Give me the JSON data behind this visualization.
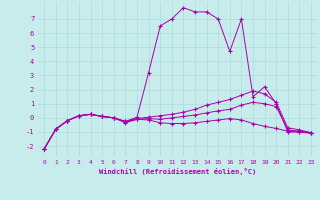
{
  "xlabel": "Windchill (Refroidissement éolien,°C)",
  "background_color": "#c8ecec",
  "line_color": "#aa00aa",
  "grid_color": "#aadddd",
  "xlim": [
    -0.5,
    23.5
  ],
  "ylim": [
    -2.7,
    8.2
  ],
  "yticks": [
    -2,
    -1,
    0,
    1,
    2,
    3,
    4,
    5,
    6,
    7
  ],
  "xticks": [
    0,
    1,
    2,
    3,
    4,
    5,
    6,
    7,
    8,
    9,
    10,
    11,
    12,
    13,
    14,
    15,
    16,
    17,
    18,
    19,
    20,
    21,
    22,
    23
  ],
  "lines": [
    {
      "x": [
        0,
        1,
        2,
        3,
        4,
        5,
        6,
        7,
        8,
        9,
        10,
        11,
        12,
        13,
        14,
        15,
        16,
        17,
        18,
        19,
        20,
        21,
        22,
        23
      ],
      "y": [
        -2.2,
        -0.8,
        -0.2,
        0.15,
        0.25,
        0.1,
        0.0,
        -0.25,
        0.05,
        3.2,
        6.5,
        7.0,
        7.8,
        7.5,
        7.5,
        7.0,
        4.7,
        7.0,
        1.5,
        2.2,
        1.0,
        -1.0,
        -1.0,
        -1.1
      ]
    },
    {
      "x": [
        0,
        1,
        2,
        3,
        4,
        5,
        6,
        7,
        8,
        9,
        10,
        11,
        12,
        13,
        14,
        15,
        16,
        17,
        18,
        19,
        20,
        21,
        22,
        23
      ],
      "y": [
        -2.2,
        -0.8,
        -0.2,
        0.15,
        0.25,
        0.1,
        0.0,
        -0.25,
        -0.05,
        0.05,
        0.15,
        0.25,
        0.4,
        0.6,
        0.9,
        1.1,
        1.3,
        1.6,
        1.9,
        1.7,
        1.1,
        -0.7,
        -0.85,
        -1.05
      ]
    },
    {
      "x": [
        0,
        1,
        2,
        3,
        4,
        5,
        6,
        7,
        8,
        9,
        10,
        11,
        12,
        13,
        14,
        15,
        16,
        17,
        18,
        19,
        20,
        21,
        22,
        23
      ],
      "y": [
        -2.2,
        -0.8,
        -0.2,
        0.15,
        0.25,
        0.1,
        0.0,
        -0.35,
        -0.1,
        -0.05,
        -0.1,
        0.0,
        0.1,
        0.2,
        0.35,
        0.5,
        0.6,
        0.9,
        1.1,
        1.0,
        0.8,
        -0.85,
        -0.95,
        -1.05
      ]
    },
    {
      "x": [
        0,
        1,
        2,
        3,
        4,
        5,
        6,
        7,
        8,
        9,
        10,
        11,
        12,
        13,
        14,
        15,
        16,
        17,
        18,
        19,
        20,
        21,
        22,
        23
      ],
      "y": [
        -2.2,
        -0.8,
        -0.2,
        0.15,
        0.25,
        0.1,
        0.0,
        -0.3,
        -0.1,
        -0.15,
        -0.35,
        -0.4,
        -0.4,
        -0.35,
        -0.25,
        -0.15,
        -0.05,
        -0.15,
        -0.4,
        -0.6,
        -0.75,
        -0.95,
        -1.0,
        -1.05
      ]
    }
  ]
}
